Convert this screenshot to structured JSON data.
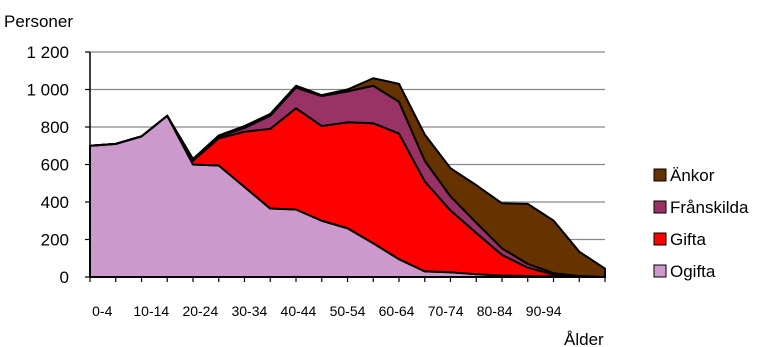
{
  "chart_data": {
    "type": "area",
    "stacked": true,
    "ylabel": "Personer",
    "xlabel": "Ålder",
    "ylim": [
      0,
      1200
    ],
    "yticks": [
      0,
      200,
      400,
      600,
      800,
      1000,
      1200
    ],
    "ytick_labels": [
      "0",
      "200",
      "400",
      "600",
      "800",
      "1 000",
      "1 200"
    ],
    "x": [
      0,
      5,
      10,
      15,
      20,
      25,
      30,
      35,
      40,
      45,
      50,
      55,
      60,
      65,
      70,
      75,
      80,
      85,
      90,
      95,
      100
    ],
    "xtick_labels": [
      "0-4",
      "10-14",
      "20-24",
      "30-34",
      "40-44",
      "50-54",
      "60-64",
      "70-74",
      "80-84",
      "90-94"
    ],
    "grid": "horizontal",
    "legend_position": "right",
    "series": [
      {
        "name": "Ogifta",
        "color": "#cc99cc",
        "values": [
          700,
          710,
          750,
          860,
          600,
          595,
          480,
          365,
          360,
          300,
          260,
          180,
          95,
          30,
          25,
          15,
          8,
          5,
          3,
          1,
          0
        ]
      },
      {
        "name": "Gifta",
        "color": "#ff0000",
        "values": [
          0,
          0,
          0,
          0,
          20,
          145,
          295,
          425,
          540,
          505,
          565,
          640,
          670,
          480,
          330,
          220,
          110,
          45,
          10,
          2,
          0
        ]
      },
      {
        "name": "Frånskilda",
        "color": "#993366",
        "values": [
          0,
          0,
          0,
          0,
          5,
          10,
          20,
          70,
          110,
          160,
          165,
          200,
          170,
          110,
          75,
          55,
          35,
          20,
          8,
          2,
          0
        ]
      },
      {
        "name": "Änkor",
        "color": "#663300",
        "values": [
          0,
          0,
          0,
          0,
          5,
          5,
          10,
          10,
          10,
          5,
          10,
          40,
          95,
          140,
          150,
          200,
          240,
          320,
          280,
          130,
          45
        ]
      }
    ],
    "legend_order": [
      "Änkor",
      "Frånskilda",
      "Gifta",
      "Ogifta"
    ]
  }
}
